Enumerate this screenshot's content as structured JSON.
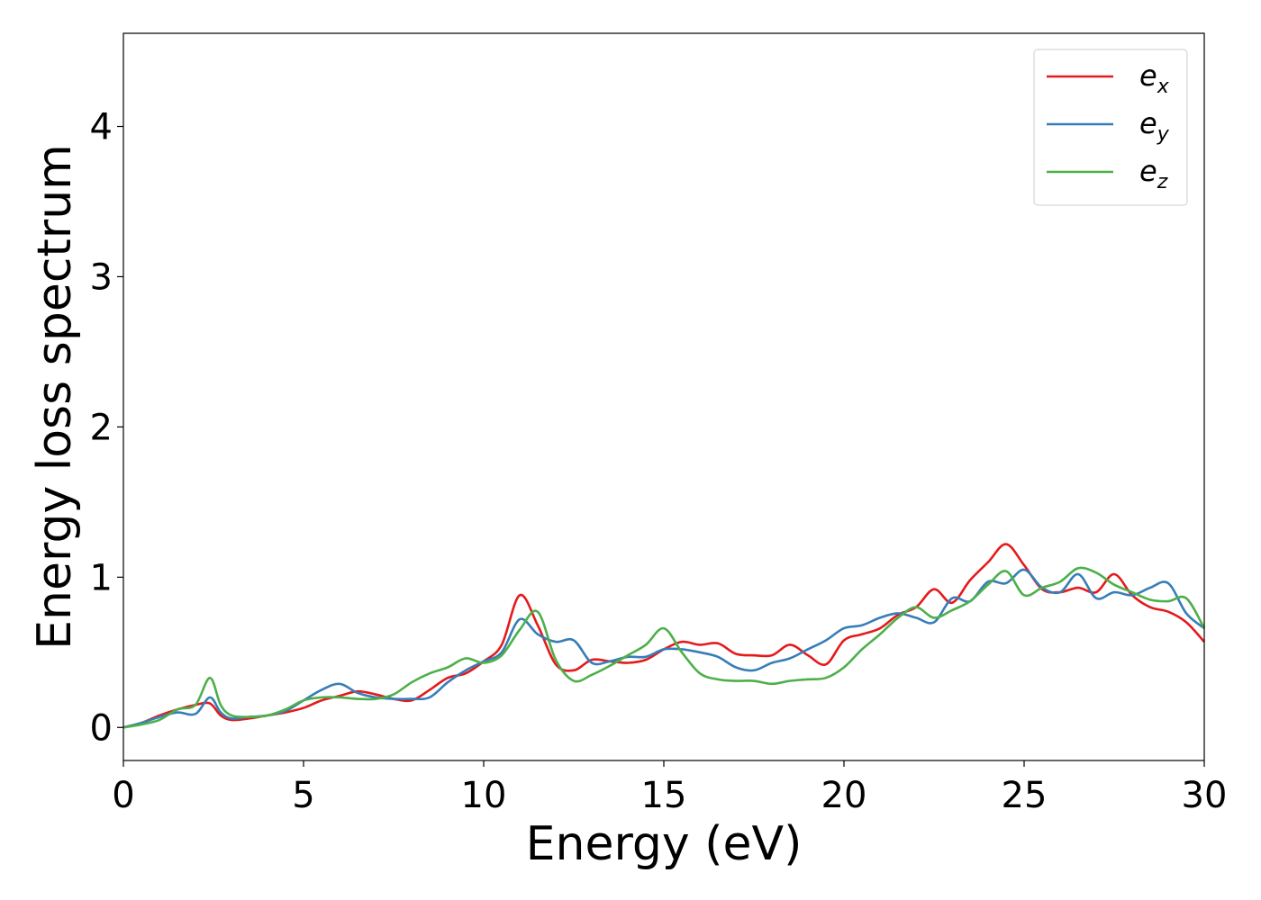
{
  "chart_data": {
    "type": "line",
    "title": "",
    "xlabel": "Energy (eV)",
    "ylabel": "Energy loss spectrum",
    "xlim": [
      0,
      30
    ],
    "ylim": [
      -0.22,
      4.62
    ],
    "xticks": [
      0,
      5,
      10,
      15,
      20,
      25,
      30
    ],
    "yticks": [
      0,
      1,
      2,
      3,
      4
    ],
    "grid": false,
    "legend_position": "top-right",
    "series": [
      {
        "name": "e_x",
        "legend_base": "e",
        "legend_sub": "x",
        "color": "#e41a1c",
        "x": [
          0,
          0.5,
          1,
          1.5,
          2,
          2.4,
          2.7,
          3,
          3.5,
          4,
          4.5,
          5,
          5.5,
          6,
          6.5,
          7,
          7.5,
          8,
          8.5,
          9,
          9.5,
          10,
          10.5,
          11,
          11.5,
          12,
          12.5,
          13,
          13.5,
          14,
          14.5,
          15,
          15.5,
          16,
          16.5,
          17,
          17.5,
          18,
          18.5,
          19,
          19.5,
          20,
          20.5,
          21,
          21.5,
          22,
          22.5,
          23,
          23.5,
          24,
          24.5,
          25,
          25.5,
          26,
          26.5,
          27,
          27.5,
          28,
          28.5,
          29,
          29.5,
          30
        ],
        "y": [
          0,
          0.03,
          0.08,
          0.12,
          0.15,
          0.16,
          0.08,
          0.05,
          0.06,
          0.08,
          0.1,
          0.13,
          0.18,
          0.21,
          0.24,
          0.22,
          0.19,
          0.18,
          0.25,
          0.33,
          0.36,
          0.44,
          0.55,
          0.88,
          0.68,
          0.42,
          0.38,
          0.45,
          0.44,
          0.43,
          0.45,
          0.52,
          0.57,
          0.55,
          0.56,
          0.49,
          0.48,
          0.48,
          0.55,
          0.48,
          0.42,
          0.58,
          0.62,
          0.66,
          0.75,
          0.8,
          0.92,
          0.83,
          0.98,
          1.1,
          1.22,
          1.08,
          0.92,
          0.9,
          0.93,
          0.9,
          1.02,
          0.88,
          0.8,
          0.77,
          0.7,
          0.57
        ]
      },
      {
        "name": "e_y",
        "legend_base": "e",
        "legend_sub": "y",
        "color": "#377eb8",
        "x": [
          0,
          0.5,
          1,
          1.5,
          2,
          2.4,
          2.7,
          3,
          3.5,
          4,
          4.5,
          5,
          5.5,
          6,
          6.5,
          7,
          7.5,
          8,
          8.5,
          9,
          9.5,
          10,
          10.5,
          11,
          11.5,
          12,
          12.5,
          13,
          13.5,
          14,
          14.5,
          15,
          15.5,
          16,
          16.5,
          17,
          17.5,
          18,
          18.5,
          19,
          19.5,
          20,
          20.5,
          21,
          21.5,
          22,
          22.5,
          23,
          23.5,
          24,
          24.5,
          25,
          25.5,
          26,
          26.5,
          27,
          27.5,
          28,
          28.5,
          29,
          29.5,
          30
        ],
        "y": [
          0,
          0.03,
          0.07,
          0.1,
          0.09,
          0.2,
          0.1,
          0.06,
          0.07,
          0.08,
          0.11,
          0.18,
          0.25,
          0.29,
          0.23,
          0.2,
          0.19,
          0.19,
          0.2,
          0.3,
          0.38,
          0.44,
          0.5,
          0.72,
          0.62,
          0.57,
          0.58,
          0.43,
          0.44,
          0.47,
          0.47,
          0.52,
          0.52,
          0.5,
          0.47,
          0.4,
          0.38,
          0.43,
          0.46,
          0.52,
          0.58,
          0.66,
          0.68,
          0.73,
          0.76,
          0.73,
          0.7,
          0.86,
          0.84,
          0.97,
          0.96,
          1.05,
          0.93,
          0.9,
          1.02,
          0.86,
          0.9,
          0.88,
          0.93,
          0.96,
          0.76,
          0.66
        ]
      },
      {
        "name": "e_z",
        "legend_base": "e",
        "legend_sub": "z",
        "color": "#4daf4a",
        "x": [
          0,
          0.5,
          1,
          1.5,
          2,
          2.4,
          2.7,
          3,
          3.5,
          4,
          4.5,
          5,
          5.5,
          6,
          6.5,
          7,
          7.5,
          8,
          8.5,
          9,
          9.5,
          10,
          10.5,
          11,
          11.5,
          12,
          12.5,
          13,
          13.5,
          14,
          14.5,
          15,
          15.5,
          16,
          16.5,
          17,
          17.5,
          18,
          18.5,
          19,
          19.5,
          20,
          20.5,
          21,
          21.5,
          22,
          22.5,
          23,
          23.5,
          24,
          24.5,
          25,
          25.5,
          26,
          26.5,
          27,
          27.5,
          28,
          28.5,
          29,
          29.5,
          30
        ],
        "y": [
          0,
          0.02,
          0.05,
          0.12,
          0.15,
          0.33,
          0.15,
          0.08,
          0.07,
          0.08,
          0.12,
          0.18,
          0.2,
          0.2,
          0.19,
          0.19,
          0.22,
          0.3,
          0.36,
          0.4,
          0.46,
          0.43,
          0.48,
          0.65,
          0.77,
          0.45,
          0.31,
          0.35,
          0.41,
          0.48,
          0.55,
          0.66,
          0.5,
          0.36,
          0.32,
          0.31,
          0.31,
          0.29,
          0.31,
          0.32,
          0.33,
          0.4,
          0.52,
          0.62,
          0.73,
          0.8,
          0.73,
          0.78,
          0.84,
          0.95,
          1.04,
          0.88,
          0.93,
          0.97,
          1.06,
          1.03,
          0.95,
          0.9,
          0.85,
          0.84,
          0.86,
          0.66
        ]
      }
    ]
  }
}
